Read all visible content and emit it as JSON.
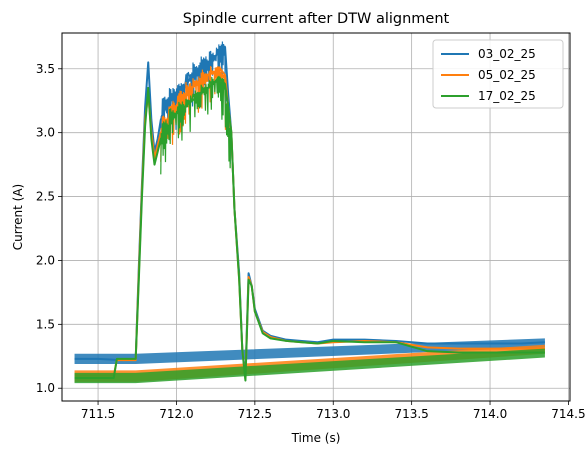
{
  "chart_data": {
    "type": "line",
    "title": "Spindle current after DTW alignment",
    "xlabel": "Time (s)",
    "ylabel": "Current (A)",
    "xlim": [
      711.27,
      714.51
    ],
    "ylim": [
      0.9,
      3.78
    ],
    "xticks": [
      711.5,
      712.0,
      712.5,
      713.0,
      713.5,
      714.0,
      714.5
    ],
    "xtick_labels": [
      "711.5",
      "712.0",
      "712.5",
      "713.0",
      "713.5",
      "714.0",
      "714.5"
    ],
    "yticks": [
      1.0,
      1.5,
      2.0,
      2.5,
      3.0,
      3.5
    ],
    "ytick_labels": [
      "1.0",
      "1.5",
      "2.0",
      "2.5",
      "3.0",
      "3.5"
    ],
    "grid": true,
    "legend_position": "top-right",
    "series": [
      {
        "name": "03_02_25",
        "color": "#1f77b4",
        "band": [
          [
            711.35,
            1.19,
            1.27
          ],
          [
            711.74,
            1.19,
            1.27
          ],
          [
            714.35,
            1.32,
            1.39
          ]
        ],
        "x": [
          711.35,
          711.5,
          711.65,
          711.74,
          711.76,
          711.78,
          711.8,
          711.82,
          711.84,
          711.86,
          711.88,
          711.9,
          711.95,
          712.0,
          712.05,
          712.1,
          712.15,
          712.2,
          712.25,
          712.28,
          712.31,
          712.33,
          712.35,
          712.37,
          712.4,
          712.42,
          712.44,
          712.46,
          712.48,
          712.5,
          712.55,
          712.6,
          712.7,
          712.8,
          712.9,
          713.0,
          713.2,
          713.4,
          713.6,
          713.8,
          714.0,
          714.2,
          714.35
        ],
        "y": [
          1.23,
          1.23,
          1.22,
          1.23,
          1.95,
          2.6,
          3.2,
          3.55,
          3.1,
          2.85,
          2.95,
          3.1,
          3.25,
          3.3,
          3.35,
          3.45,
          3.5,
          3.55,
          3.6,
          3.65,
          3.67,
          3.3,
          3.0,
          2.4,
          1.9,
          1.3,
          1.1,
          1.9,
          1.8,
          1.62,
          1.45,
          1.41,
          1.38,
          1.37,
          1.36,
          1.38,
          1.38,
          1.37,
          1.35,
          1.35,
          1.35,
          1.35,
          1.36
        ]
      },
      {
        "name": "05_02_25",
        "color": "#ff7f0e",
        "band": [
          [
            711.35,
            1.05,
            1.14
          ],
          [
            711.74,
            1.05,
            1.14
          ],
          [
            714.35,
            1.27,
            1.34
          ]
        ],
        "x": [
          711.35,
          711.5,
          711.6,
          711.62,
          711.74,
          711.76,
          711.78,
          711.8,
          711.82,
          711.84,
          711.86,
          711.88,
          711.9,
          711.95,
          712.0,
          712.05,
          712.1,
          712.15,
          712.2,
          712.25,
          712.28,
          712.31,
          712.33,
          712.35,
          712.37,
          712.4,
          712.42,
          712.44,
          712.46,
          712.48,
          712.5,
          712.55,
          712.6,
          712.7,
          712.8,
          712.9,
          713.0,
          713.2,
          713.4,
          713.6,
          713.8,
          714.0,
          714.2,
          714.35
        ],
        "y": [
          1.1,
          1.1,
          1.1,
          1.22,
          1.22,
          1.9,
          2.55,
          3.1,
          3.3,
          3.0,
          2.8,
          2.9,
          3.0,
          3.1,
          3.2,
          3.28,
          3.35,
          3.4,
          3.45,
          3.48,
          3.5,
          3.45,
          3.2,
          3.0,
          2.4,
          1.85,
          1.3,
          1.07,
          1.87,
          1.8,
          1.6,
          1.44,
          1.4,
          1.37,
          1.36,
          1.35,
          1.36,
          1.37,
          1.36,
          1.32,
          1.31,
          1.31,
          1.31,
          1.31
        ]
      },
      {
        "name": "17_02_25",
        "color": "#2ca02c",
        "band": [
          [
            711.35,
            1.04,
            1.12
          ],
          [
            711.74,
            1.04,
            1.12
          ],
          [
            714.35,
            1.24,
            1.31
          ]
        ],
        "x": [
          711.35,
          711.5,
          711.6,
          711.62,
          711.74,
          711.76,
          711.78,
          711.8,
          711.82,
          711.84,
          711.86,
          711.88,
          711.9,
          711.95,
          712.0,
          712.05,
          712.1,
          712.15,
          712.2,
          712.25,
          712.28,
          712.31,
          712.33,
          712.35,
          712.37,
          712.4,
          712.42,
          712.44,
          712.46,
          712.48,
          712.5,
          712.55,
          712.6,
          712.7,
          712.8,
          712.9,
          713.0,
          713.2,
          713.4,
          713.6,
          713.8,
          714.0,
          714.2,
          714.35
        ],
        "y": [
          1.08,
          1.08,
          1.08,
          1.23,
          1.23,
          1.85,
          2.5,
          3.05,
          3.35,
          2.95,
          2.75,
          2.85,
          2.95,
          3.05,
          3.15,
          3.2,
          3.25,
          3.3,
          3.35,
          3.4,
          3.42,
          3.38,
          3.2,
          3.0,
          2.4,
          1.85,
          1.3,
          1.06,
          1.85,
          1.8,
          1.6,
          1.43,
          1.39,
          1.37,
          1.36,
          1.35,
          1.37,
          1.36,
          1.36,
          1.29,
          1.28,
          1.28,
          1.28,
          1.28
        ]
      }
    ]
  }
}
